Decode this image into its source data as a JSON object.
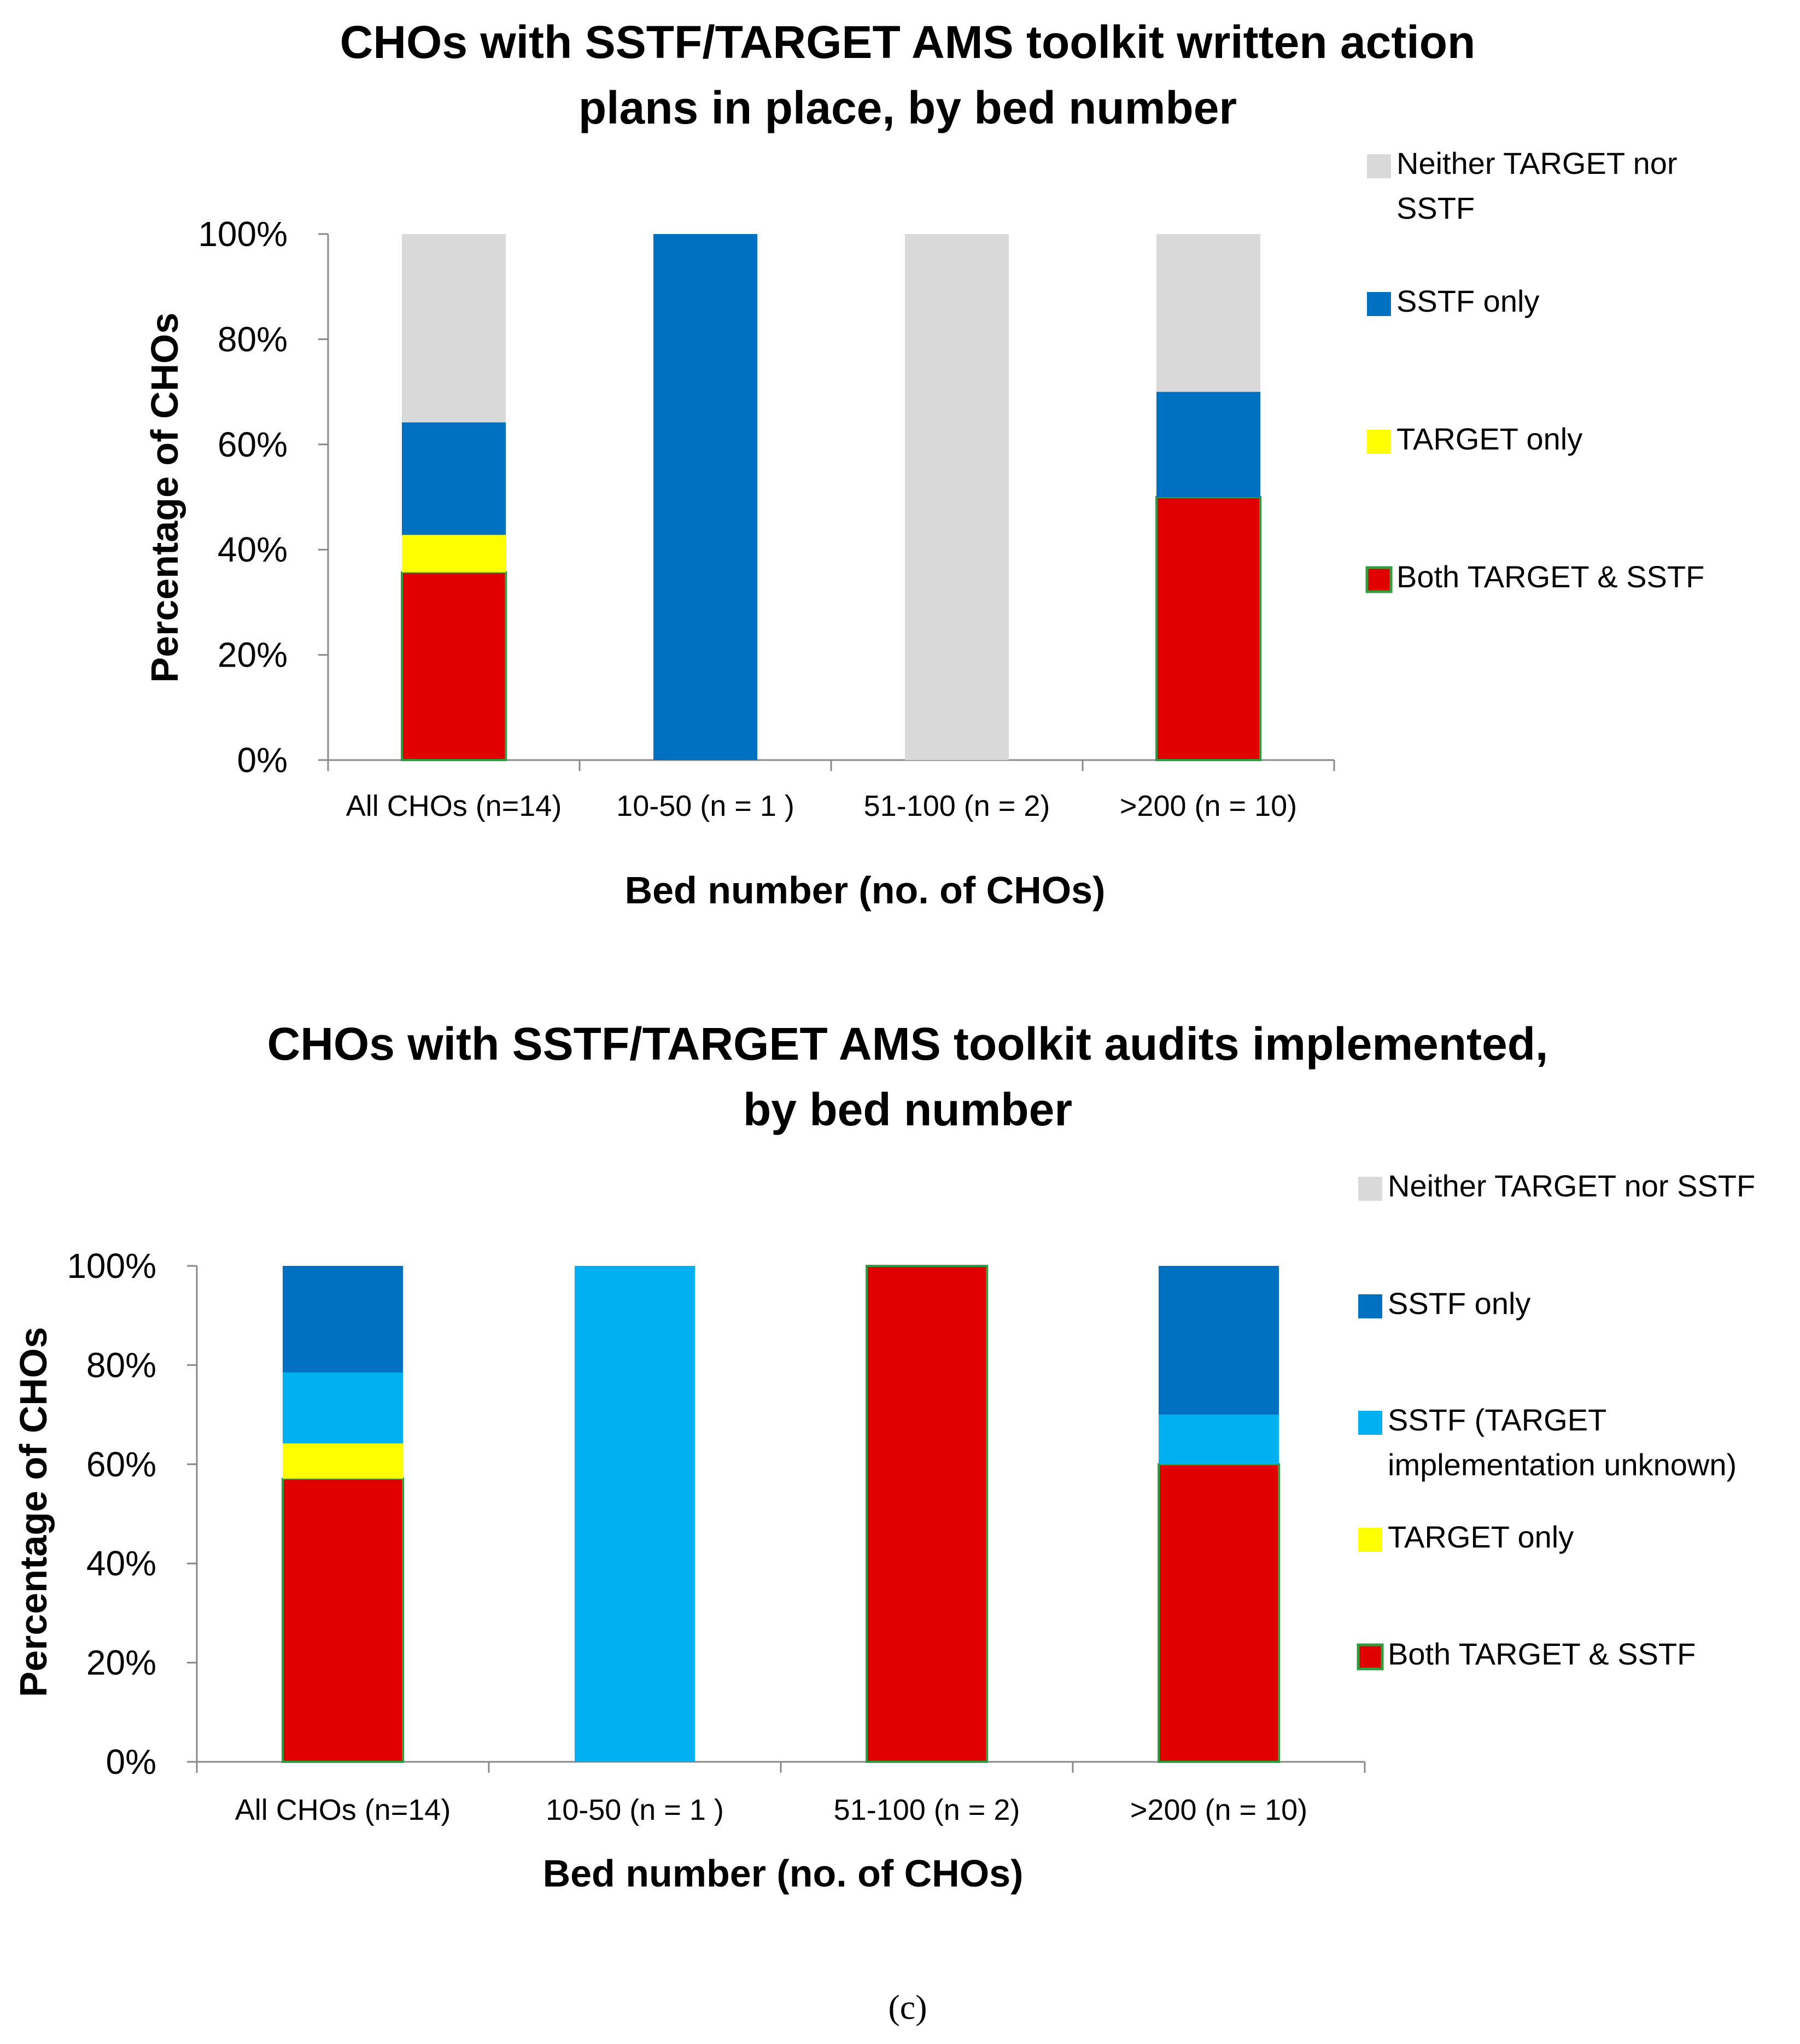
{
  "panel_label": "(c)",
  "colors": {
    "both": "#e00000",
    "both_border": "#2e9e3e",
    "target_only": "#ffff00",
    "sstf_unknown": "#00b0f0",
    "sstf_only": "#0070c0",
    "neither": "#d9d9d9",
    "axis": "#888888"
  },
  "chart_data": [
    {
      "type": "bar",
      "stacked": true,
      "title": [
        "CHOs with SSTF/TARGET AMS toolkit written action",
        "plans in place, by bed number"
      ],
      "xlabel": "Bed number (no. of CHOs)",
      "ylabel": "Percentage of CHOs",
      "ylim": [
        0,
        100
      ],
      "yticks": [
        "0%",
        "20%",
        "40%",
        "60%",
        "80%",
        "100%"
      ],
      "categories": [
        "All CHOs (n=14)",
        "10-50 (n = 1 )",
        "51-100 (n = 2)",
        ">200 (n = 10)"
      ],
      "series": [
        {
          "name": "Both TARGET & SSTF",
          "key": "both",
          "values": [
            35.7,
            0,
            0,
            50
          ]
        },
        {
          "name": "TARGET only",
          "key": "target_only",
          "values": [
            7.1,
            0,
            0,
            0
          ]
        },
        {
          "name": "SSTF only",
          "key": "sstf_only",
          "values": [
            21.4,
            100,
            0,
            20
          ]
        },
        {
          "name": "Neither TARGET nor SSTF",
          "key": "neither",
          "values": [
            35.8,
            0,
            100,
            30
          ]
        }
      ],
      "legend": [
        {
          "lines": [
            "Neither TARGET nor",
            "SSTF"
          ],
          "key": "neither"
        },
        {
          "lines": [
            "SSTF only"
          ],
          "key": "sstf_only"
        },
        {
          "lines": [
            "TARGET only"
          ],
          "key": "target_only"
        },
        {
          "lines": [
            "Both TARGET & SSTF"
          ],
          "key": "both"
        }
      ],
      "legend_position": "right"
    },
    {
      "type": "bar",
      "stacked": true,
      "title": [
        "CHOs with SSTF/TARGET AMS toolkit audits implemented,",
        "by bed number"
      ],
      "xlabel": "Bed number (no. of CHOs)",
      "ylabel": "Percentage of CHOs",
      "ylim": [
        0,
        100
      ],
      "yticks": [
        "0%",
        "20%",
        "40%",
        "60%",
        "80%",
        "100%"
      ],
      "categories": [
        "All CHOs (n=14)",
        "10-50 (n = 1 )",
        "51-100 (n = 2)",
        ">200 (n = 10)"
      ],
      "series": [
        {
          "name": "Both TARGET & SSTF",
          "key": "both",
          "values": [
            57.1,
            0,
            100,
            60
          ]
        },
        {
          "name": "TARGET only",
          "key": "target_only",
          "values": [
            7.1,
            0,
            0,
            0
          ]
        },
        {
          "name": "SSTF (TARGET implementation unknown)",
          "key": "sstf_unknown",
          "values": [
            14.3,
            100,
            0,
            10
          ]
        },
        {
          "name": "SSTF only",
          "key": "sstf_only",
          "values": [
            21.5,
            0,
            0,
            30
          ]
        },
        {
          "name": "Neither TARGET nor SSTF",
          "key": "neither",
          "values": [
            0,
            0,
            0,
            0
          ]
        }
      ],
      "legend": [
        {
          "lines": [
            "Neither TARGET nor SSTF"
          ],
          "key": "neither"
        },
        {
          "lines": [
            "SSTF only"
          ],
          "key": "sstf_only"
        },
        {
          "lines": [
            "SSTF (TARGET",
            "implementation unknown)"
          ],
          "key": "sstf_unknown"
        },
        {
          "lines": [
            "TARGET only"
          ],
          "key": "target_only"
        },
        {
          "lines": [
            "Both TARGET & SSTF"
          ],
          "key": "both"
        }
      ],
      "legend_position": "right"
    }
  ]
}
